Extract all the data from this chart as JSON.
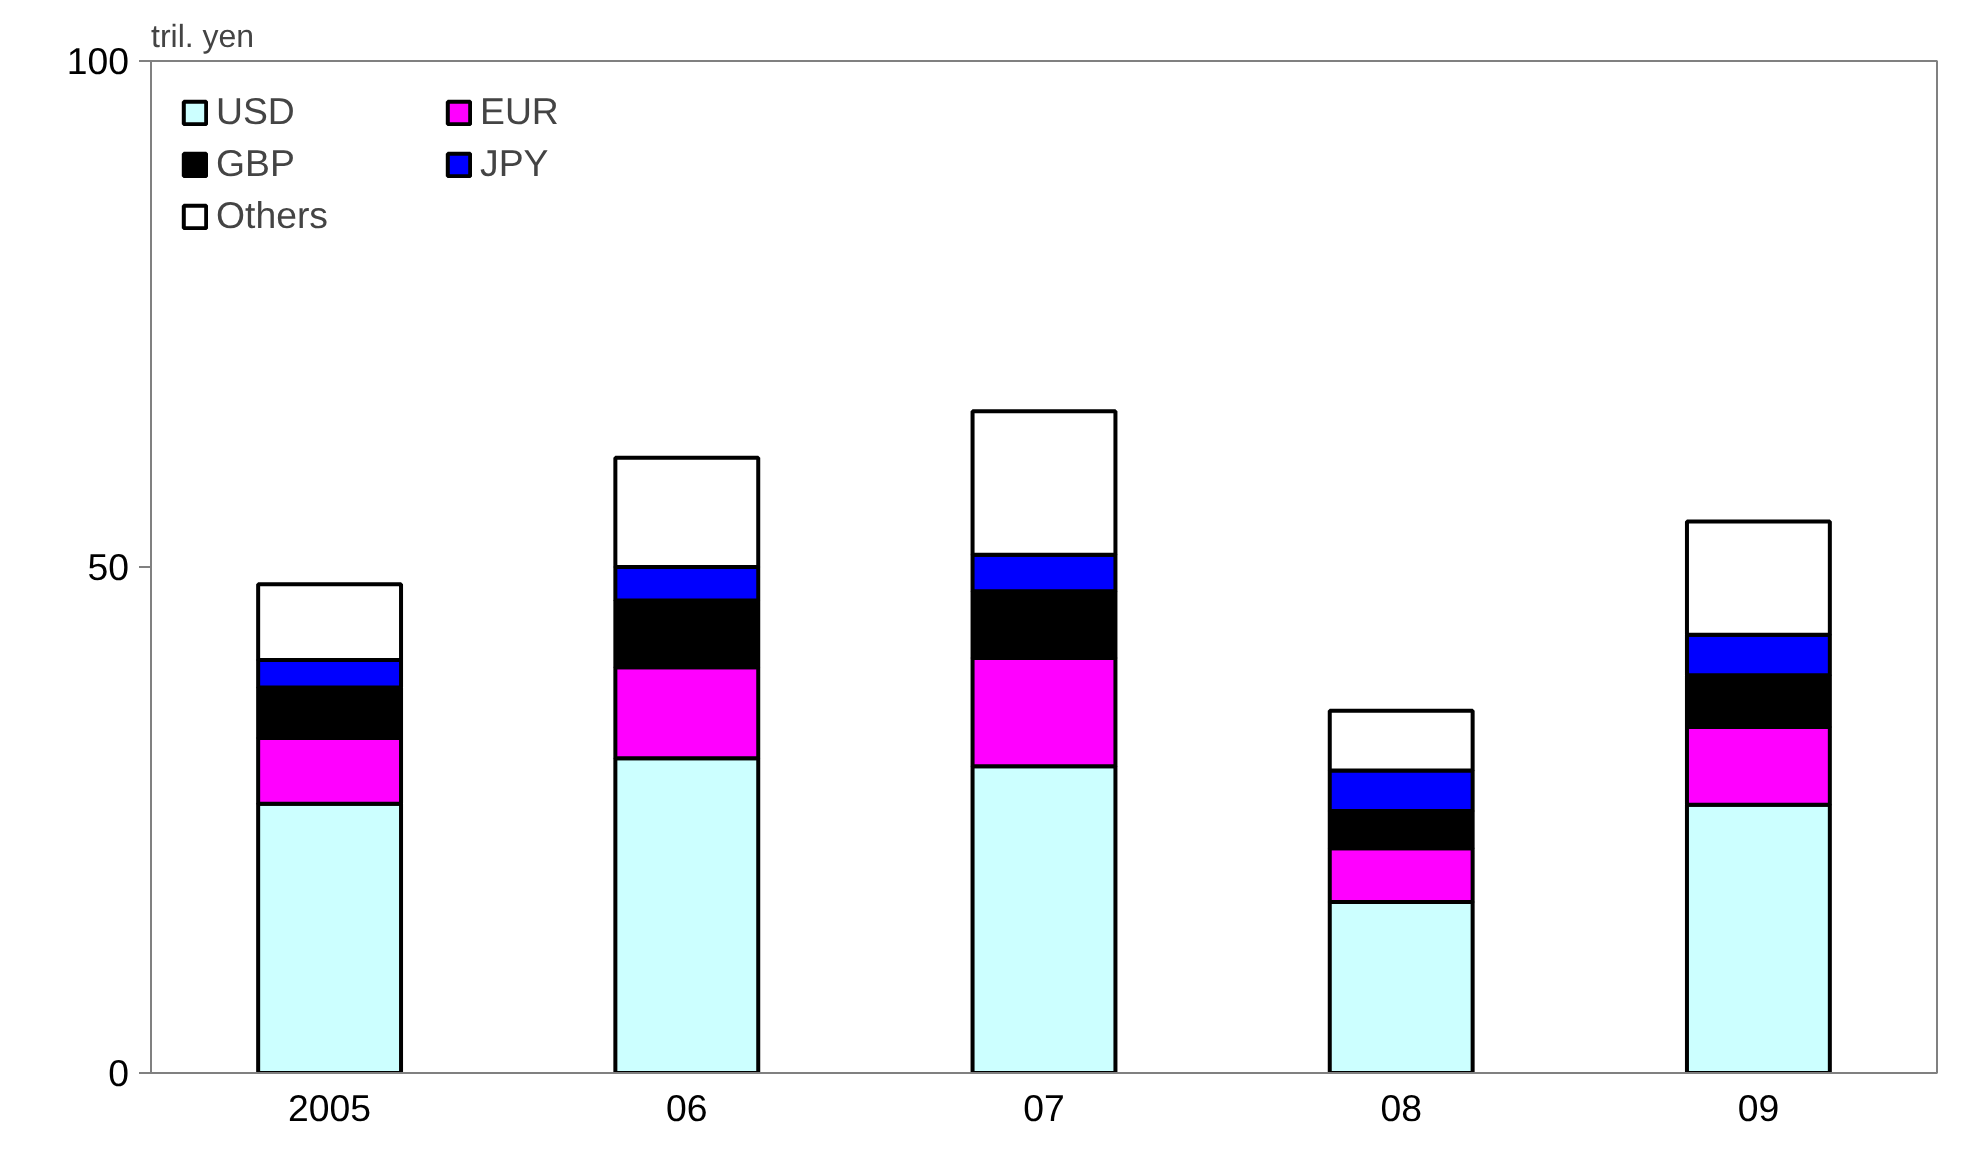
{
  "chart_data": {
    "type": "bar",
    "stacked": true,
    "ylabel": "tril. yen",
    "categories": [
      "2005",
      "06",
      "07",
      "08",
      "09"
    ],
    "series": [
      {
        "name": "USD",
        "color": "#ccffff",
        "values": [
          26.6,
          31.1,
          30.3,
          16.9,
          26.5
        ]
      },
      {
        "name": "EUR",
        "color": "#ff00ff",
        "values": [
          6.5,
          9.0,
          10.7,
          5.3,
          7.7
        ]
      },
      {
        "name": "GBP",
        "color": "#000000",
        "values": [
          5.0,
          6.6,
          6.6,
          3.7,
          5.1
        ]
      },
      {
        "name": "JPY",
        "color": "#0000ff",
        "values": [
          2.7,
          3.3,
          3.6,
          4.0,
          4.0
        ]
      },
      {
        "name": "Others",
        "color": "#ffffff",
        "values": [
          7.5,
          10.8,
          14.2,
          5.9,
          11.2
        ]
      }
    ],
    "ylim": [
      0,
      100
    ],
    "yticks": [
      0,
      50,
      100
    ],
    "grid": false,
    "legend": "top left"
  }
}
